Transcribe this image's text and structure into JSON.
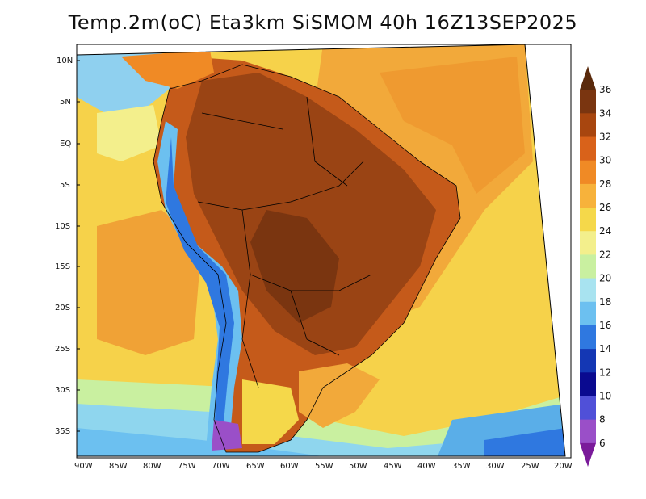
{
  "title": "Temp.2m(oC) Eta3km SiSMOM 40h 16Z13SEP2025",
  "map": {
    "lat_labels": [
      "10N",
      "5N",
      "EQ",
      "5S",
      "10S",
      "15S",
      "20S",
      "25S",
      "30S",
      "35S"
    ],
    "lon_labels": [
      "90W",
      "85W",
      "80W",
      "75W",
      "70W",
      "65W",
      "60W",
      "55W",
      "50W",
      "45W",
      "40W",
      "35W",
      "30W",
      "25W",
      "20W"
    ]
  },
  "colorbar": {
    "labels": [
      "36",
      "34",
      "32",
      "30",
      "28",
      "26",
      "24",
      "22",
      "20",
      "18",
      "16",
      "14",
      "12",
      "10",
      "8",
      "6"
    ],
    "colors": [
      "#5a2a0c",
      "#7a3510",
      "#a8460f",
      "#d9621a",
      "#f08a25",
      "#f7b23b",
      "#f5d84a",
      "#f3ef8c",
      "#c9f0a0",
      "#a8e3f0",
      "#6cc0f0",
      "#2f78e0",
      "#1437b4",
      "#0a0a90",
      "#5050d8",
      "#9a4fc8",
      "#7a1a9a"
    ]
  }
}
